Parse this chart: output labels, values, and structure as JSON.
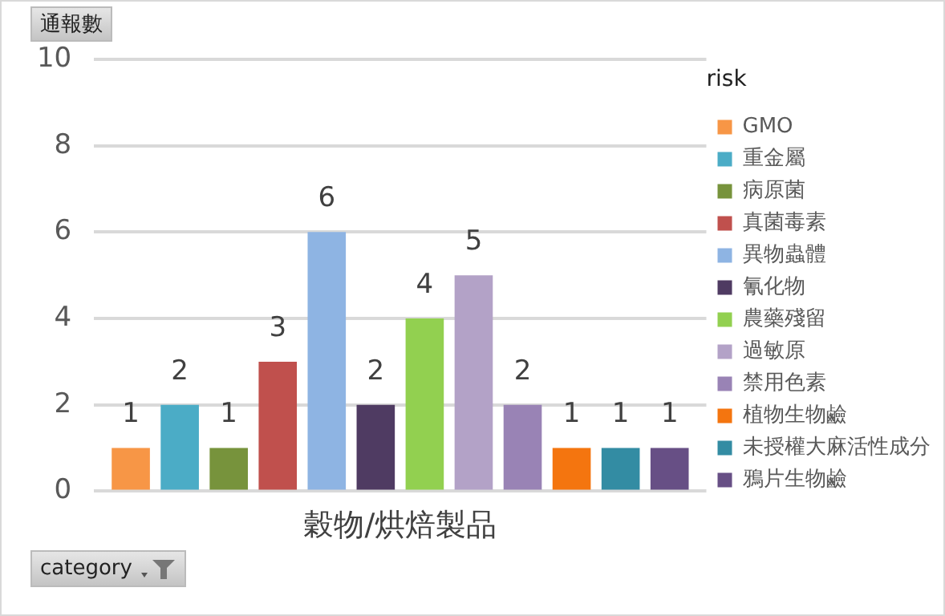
{
  "chart_data": {
    "type": "bar",
    "ylabel": "通報數",
    "xlabel": "category",
    "legend_title": "risk",
    "categories": [
      "穀物/烘焙製品"
    ],
    "series": [
      {
        "name": "GMO",
        "color": "#f79646",
        "values": [
          1
        ]
      },
      {
        "name": "重金屬",
        "color": "#4bacc6",
        "values": [
          2
        ]
      },
      {
        "name": "病原菌",
        "color": "#77933c",
        "values": [
          1
        ]
      },
      {
        "name": "真菌毒素",
        "color": "#c0504d",
        "values": [
          3
        ]
      },
      {
        "name": "異物蟲體",
        "color": "#8eb4e3",
        "values": [
          6
        ]
      },
      {
        "name": "氰化物",
        "color": "#4f3b62",
        "values": [
          2
        ]
      },
      {
        "name": "農藥殘留",
        "color": "#92d050",
        "values": [
          4
        ]
      },
      {
        "name": "過敏原",
        "color": "#b3a2c7",
        "values": [
          5
        ]
      },
      {
        "name": "禁用色素",
        "color": "#9983b5",
        "values": [
          2
        ]
      },
      {
        "name": "植物生物鹼",
        "color": "#f4750f",
        "values": [
          1
        ]
      },
      {
        "name": "未授權大麻活性成分",
        "color": "#338ca3",
        "values": [
          1
        ]
      },
      {
        "name": "鴉片生物鹼",
        "color": "#674f85",
        "values": [
          1
        ]
      }
    ],
    "ylim": [
      0,
      10
    ],
    "yticks": [
      0,
      2,
      4,
      6,
      8,
      10
    ],
    "grid": "y",
    "legend": "right",
    "data_labels": true
  }
}
